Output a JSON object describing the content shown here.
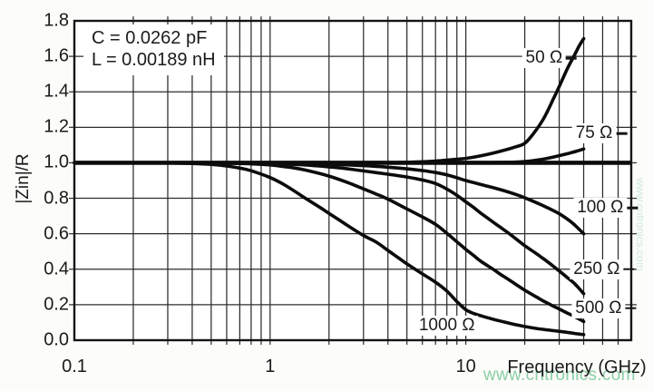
{
  "watermark": {
    "text": "www.cntronics.com",
    "color": "#8ccfa6"
  },
  "chart_data": {
    "type": "line",
    "title": "",
    "xlabel": "Frequency (GHz)",
    "ylabel": "|Zin|/R",
    "grid": true,
    "legend_position": "inline-labels",
    "annotation": {
      "line1": "C = 0.0262 pF",
      "line2": "L = 0.00189 nH"
    },
    "x_axis": {
      "scale": "log",
      "min": 0.1,
      "max": 70,
      "ticks": [
        {
          "value": 0.1,
          "label": "0.1"
        },
        {
          "value": 1,
          "label": "1"
        },
        {
          "value": 10,
          "label": "10"
        }
      ]
    },
    "y_axis": {
      "min": 0,
      "max": 1.8,
      "step": 0.2,
      "tick_labels": [
        "0.0",
        "0.2",
        "0.4",
        "0.6",
        "0.8",
        "1.0",
        "1.2",
        "1.4",
        "1.6",
        "1.8"
      ]
    },
    "reference_line": {
      "value": 1.0
    },
    "curve_color": "#0c0c0c",
    "series": [
      {
        "id": "50-ohm",
        "label": "50 Ω",
        "leader_dash": true,
        "label_pos": {
          "f": 25.1,
          "v": 1.59
        },
        "points": [
          [
            0.1,
            1
          ],
          [
            0.3,
            1
          ],
          [
            1,
            1
          ],
          [
            2,
            1
          ],
          [
            3,
            1
          ],
          [
            4,
            1
          ],
          [
            5,
            1.003
          ],
          [
            6,
            1.006
          ],
          [
            7,
            1.01
          ],
          [
            8,
            1.015
          ],
          [
            10,
            1.025
          ],
          [
            12,
            1.04
          ],
          [
            15,
            1.065
          ],
          [
            18,
            1.09
          ],
          [
            20,
            1.11
          ],
          [
            22,
            1.16
          ],
          [
            25,
            1.25
          ],
          [
            28,
            1.36
          ],
          [
            30,
            1.43
          ],
          [
            33,
            1.53
          ],
          [
            36,
            1.61
          ],
          [
            38,
            1.66
          ],
          [
            40,
            1.7
          ]
        ]
      },
      {
        "id": "75-ohm",
        "label": "75 Ω",
        "leader_dash": true,
        "label_pos": {
          "f": 45.2,
          "v": 1.165
        },
        "points": [
          [
            0.1,
            1
          ],
          [
            1,
            1
          ],
          [
            5,
            1
          ],
          [
            10,
            1
          ],
          [
            14,
            1.001
          ],
          [
            18,
            1.004
          ],
          [
            22,
            1.012
          ],
          [
            26,
            1.025
          ],
          [
            30,
            1.04
          ],
          [
            34,
            1.055
          ],
          [
            37,
            1.066
          ],
          [
            40,
            1.078
          ]
        ]
      },
      {
        "id": "100-ohm",
        "label": "100 Ω",
        "leader_dash": true,
        "label_pos": {
          "f": 48.6,
          "v": 0.745
        },
        "points": [
          [
            0.1,
            1
          ],
          [
            0.5,
            1
          ],
          [
            1,
            0.998
          ],
          [
            1.5,
            0.996
          ],
          [
            2,
            0.992
          ],
          [
            3,
            0.984
          ],
          [
            4,
            0.975
          ],
          [
            5,
            0.966
          ],
          [
            6,
            0.956
          ],
          [
            7,
            0.945
          ],
          [
            8,
            0.932
          ],
          [
            9,
            0.916
          ],
          [
            10,
            0.9
          ],
          [
            12,
            0.877
          ],
          [
            15,
            0.849
          ],
          [
            18,
            0.822
          ],
          [
            20,
            0.803
          ],
          [
            25,
            0.757
          ],
          [
            30,
            0.713
          ],
          [
            35,
            0.661
          ],
          [
            40,
            0.6
          ]
        ]
      },
      {
        "id": "250-ohm",
        "label": "250 Ω",
        "leader_dash": true,
        "label_pos": {
          "f": 46.6,
          "v": 0.4
        },
        "points": [
          [
            0.1,
            1
          ],
          [
            0.5,
            1
          ],
          [
            0.8,
            0.998
          ],
          [
            1,
            0.995
          ],
          [
            1.5,
            0.988
          ],
          [
            2,
            0.977
          ],
          [
            2.5,
            0.966
          ],
          [
            3,
            0.954
          ],
          [
            4,
            0.936
          ],
          [
            5,
            0.92
          ],
          [
            6,
            0.903
          ],
          [
            7,
            0.883
          ],
          [
            8,
            0.852
          ],
          [
            9,
            0.817
          ],
          [
            10,
            0.78
          ],
          [
            11,
            0.747
          ],
          [
            12,
            0.714
          ],
          [
            14,
            0.66
          ],
          [
            15,
            0.637
          ],
          [
            17,
            0.593
          ],
          [
            20,
            0.533
          ],
          [
            23,
            0.487
          ],
          [
            25,
            0.458
          ],
          [
            28,
            0.417
          ],
          [
            30,
            0.39
          ],
          [
            33,
            0.353
          ],
          [
            36,
            0.318
          ],
          [
            40,
            0.262
          ]
        ]
      },
      {
        "id": "500-ohm",
        "label": "500 Ω",
        "leader_dash": true,
        "label_pos": {
          "f": 47.6,
          "v": 0.18
        },
        "points": [
          [
            0.1,
            1
          ],
          [
            0.3,
            1
          ],
          [
            0.5,
            0.999
          ],
          [
            0.7,
            0.996
          ],
          [
            1,
            0.988
          ],
          [
            1.3,
            0.972
          ],
          [
            1.5,
            0.96
          ],
          [
            2,
            0.925
          ],
          [
            2.5,
            0.888
          ],
          [
            3,
            0.853
          ],
          [
            3.5,
            0.823
          ],
          [
            4,
            0.795
          ],
          [
            5,
            0.74
          ],
          [
            6,
            0.695
          ],
          [
            7,
            0.653
          ],
          [
            8,
            0.603
          ],
          [
            9,
            0.555
          ],
          [
            10,
            0.512
          ],
          [
            11,
            0.476
          ],
          [
            12,
            0.443
          ],
          [
            14,
            0.395
          ],
          [
            15,
            0.372
          ],
          [
            17,
            0.333
          ],
          [
            20,
            0.282
          ],
          [
            23,
            0.243
          ],
          [
            25,
            0.22
          ],
          [
            28,
            0.192
          ],
          [
            30,
            0.176
          ],
          [
            33,
            0.153
          ],
          [
            36,
            0.133
          ],
          [
            40,
            0.105
          ]
        ]
      },
      {
        "id": "1000-ohm",
        "label": "1000 Ω",
        "leader_dash": false,
        "label_pos": {
          "f": 8.0,
          "v": 0.082
        },
        "points": [
          [
            0.1,
            1
          ],
          [
            0.2,
            1
          ],
          [
            0.3,
            0.999
          ],
          [
            0.4,
            0.996
          ],
          [
            0.5,
            0.991
          ],
          [
            0.6,
            0.982
          ],
          [
            0.7,
            0.97
          ],
          [
            0.8,
            0.955
          ],
          [
            1,
            0.917
          ],
          [
            1.2,
            0.872
          ],
          [
            1.5,
            0.803
          ],
          [
            1.8,
            0.748
          ],
          [
            2,
            0.715
          ],
          [
            2.5,
            0.645
          ],
          [
            3,
            0.59
          ],
          [
            3.5,
            0.552
          ],
          [
            4,
            0.506
          ],
          [
            4.5,
            0.466
          ],
          [
            5,
            0.43
          ],
          [
            6,
            0.374
          ],
          [
            7,
            0.327
          ],
          [
            8,
            0.277
          ],
          [
            9,
            0.218
          ],
          [
            10,
            0.172
          ],
          [
            11,
            0.15
          ],
          [
            12,
            0.137
          ],
          [
            14,
            0.116
          ],
          [
            15,
            0.108
          ],
          [
            17,
            0.093
          ],
          [
            20,
            0.077
          ],
          [
            23,
            0.066
          ],
          [
            25,
            0.061
          ],
          [
            28,
            0.054
          ],
          [
            30,
            0.05
          ],
          [
            33,
            0.044
          ],
          [
            36,
            0.038
          ],
          [
            40,
            0.031
          ]
        ]
      }
    ]
  }
}
